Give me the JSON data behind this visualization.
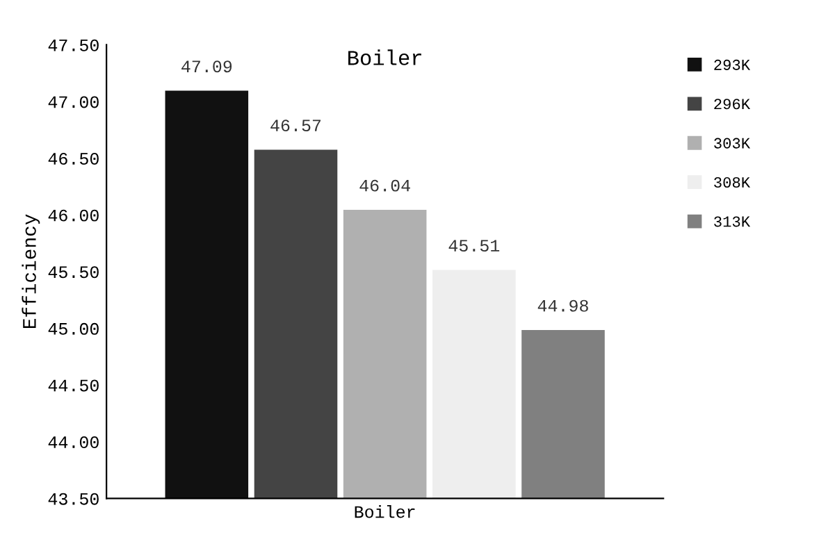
{
  "chart_data": {
    "type": "bar",
    "title": "Boiler",
    "ylabel": "Efficiency",
    "categories": [
      "Boiler"
    ],
    "series": [
      {
        "name": "293K",
        "color": "#111111",
        "values": [
          47.09
        ]
      },
      {
        "name": "296K",
        "color": "#444444",
        "values": [
          46.57
        ]
      },
      {
        "name": "303K",
        "color": "#b0b0b0",
        "values": [
          46.04
        ]
      },
      {
        "name": "308K",
        "color": "#eeeeee",
        "values": [
          45.51
        ]
      },
      {
        "name": "313K",
        "color": "#808080",
        "values": [
          44.98
        ]
      }
    ],
    "ylim": [
      43.5,
      47.5
    ],
    "yticks": [
      {
        "value": 43.5,
        "label": "43.50"
      },
      {
        "value": 44,
        "label": "44.00"
      },
      {
        "value": 44.5,
        "label": "44.50"
      },
      {
        "value": 45,
        "label": "45.00"
      },
      {
        "value": 45.5,
        "label": "45.50"
      },
      {
        "value": 46,
        "label": "46.00"
      },
      {
        "value": 46.5,
        "label": "46.50"
      },
      {
        "value": 47,
        "label": "47.00"
      },
      {
        "value": 47.5,
        "label": "47.50"
      }
    ],
    "data_labels": true,
    "legend": "top right",
    "grid": false
  }
}
